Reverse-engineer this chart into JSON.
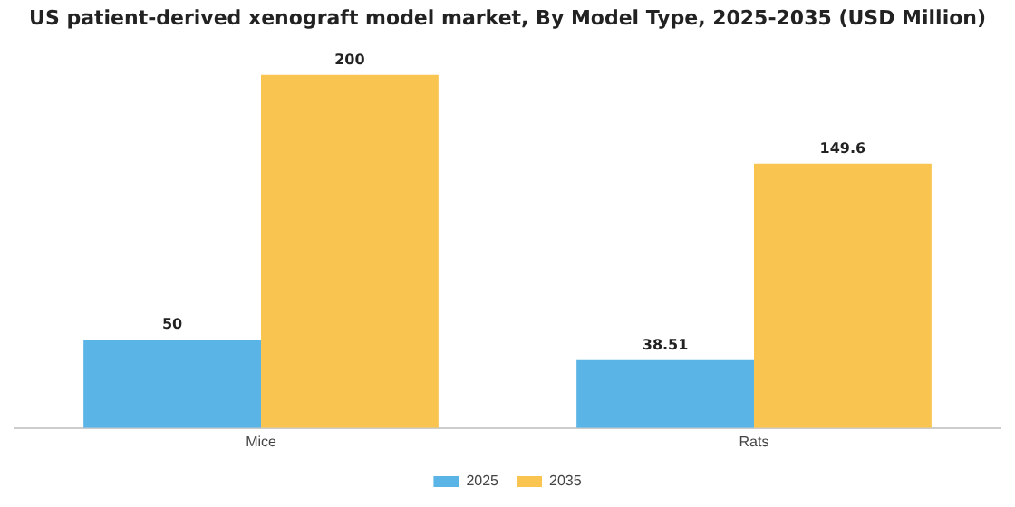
{
  "chart_data": {
    "type": "bar",
    "title": "US patient-derived xenograft model market, By Model Type, 2025-2035 (USD Million)",
    "categories": [
      "Mice",
      "Rats"
    ],
    "series": [
      {
        "name": "2025",
        "color": "#5ab4e6",
        "values": [
          50,
          38.51
        ]
      },
      {
        "name": "2035",
        "color": "#f9c44f",
        "values": [
          200,
          149.6
        ]
      }
    ],
    "data_labels": true,
    "legend": "bottom",
    "grid": false
  }
}
